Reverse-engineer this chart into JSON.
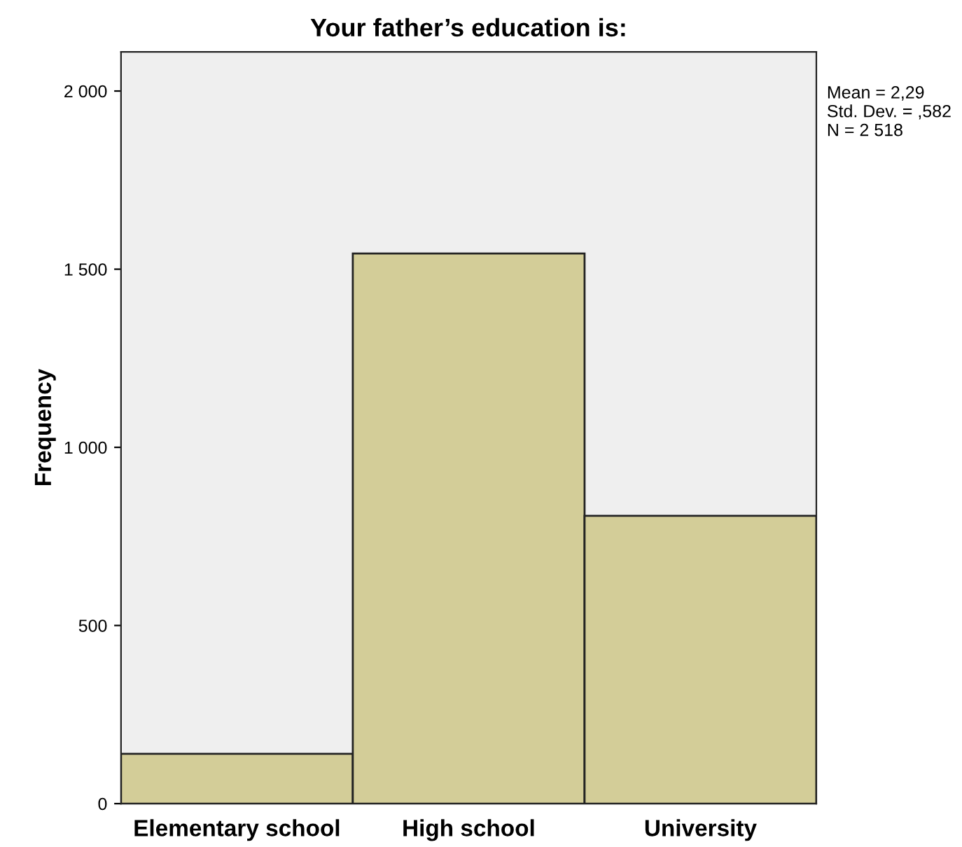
{
  "chart_data": {
    "type": "bar",
    "title": "Your father’s education is:",
    "ylabel": "Frequency",
    "categories": [
      "Elementary school",
      "High school",
      "University"
    ],
    "values": [
      140,
      1544,
      808
    ],
    "color": "#d3cd98",
    "ylim": [
      0,
      2110
    ],
    "yticks": [
      0,
      500,
      {
        "value": 1000,
        "label": "1 000"
      },
      {
        "value": 1500,
        "label": "1 500"
      },
      {
        "value": 2000,
        "label": "2 000"
      }
    ],
    "grid": false,
    "legend": false,
    "annotations": [
      "Mean = 2,29",
      "Std. Dev. = ,582",
      "N = 2 518"
    ]
  }
}
